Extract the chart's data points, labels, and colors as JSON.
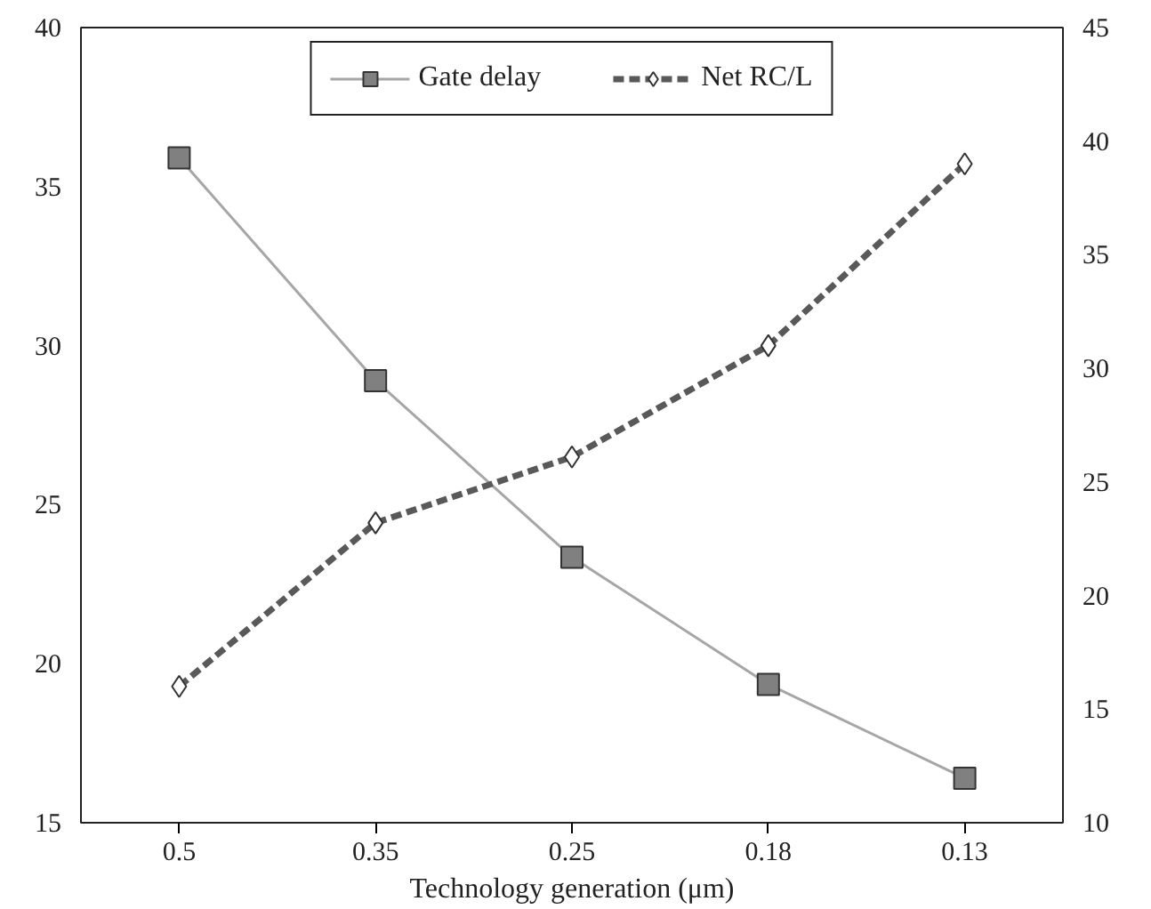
{
  "chart_data": {
    "type": "line",
    "xlabel": "Technology generation (μm)",
    "categories": [
      "0.5",
      "0.35",
      "0.25",
      "0.18",
      "0.13"
    ],
    "ylim": [
      15,
      40
    ],
    "yticks": [
      15,
      20,
      25,
      30,
      35,
      40
    ],
    "y2lim": [
      10,
      45
    ],
    "y2ticks": [
      10,
      15,
      20,
      25,
      30,
      35,
      40,
      45
    ],
    "legend": "top",
    "grid": false,
    "series": [
      {
        "name": "Gate delay",
        "color": "#a6a6a6",
        "marker": "square",
        "line_style": "solid",
        "values": [
          35.9,
          28.9,
          23.35,
          19.35,
          16.4
        ]
      },
      {
        "name": "Net RC/L",
        "color": "#595959",
        "marker": "diamond",
        "line_style": "dashed",
        "axis": "y2",
        "values": [
          16.0,
          23.2,
          26.1,
          31.0,
          39.0
        ]
      }
    ]
  }
}
